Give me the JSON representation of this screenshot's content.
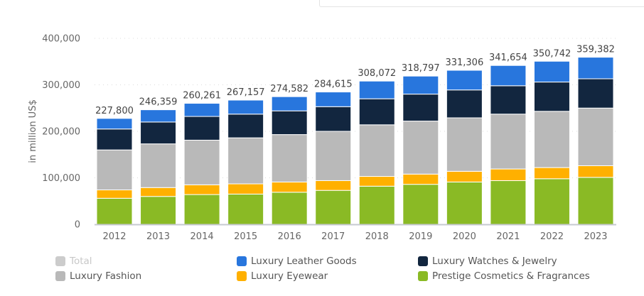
{
  "chart_data": {
    "type": "bar",
    "stacked": true,
    "ylabel": "in million US$",
    "ylim": [
      0,
      400000
    ],
    "yticks": [
      0,
      100000,
      200000,
      300000,
      400000
    ],
    "ytick_labels": [
      "0",
      "100,000",
      "200,000",
      "300,000",
      "400,000"
    ],
    "grid": true,
    "legend_placement": "bottom",
    "categories": [
      "2012",
      "2013",
      "2014",
      "2015",
      "2016",
      "2017",
      "2018",
      "2019",
      "2020",
      "2021",
      "2022",
      "2023"
    ],
    "totals": [
      227800,
      246359,
      260261,
      267157,
      274582,
      284615,
      308072,
      318797,
      331306,
      341654,
      350742,
      359382
    ],
    "total_labels": [
      "227,800",
      "246,359",
      "260,261",
      "267,157",
      "274,582",
      "284,615",
      "308,072",
      "318,797",
      "331,306",
      "341,654",
      "350,742",
      "359,382"
    ],
    "series": [
      {
        "name": "Prestige Cosmetics & Fragrances",
        "color": "#8aba25",
        "values": [
          56000,
          60000,
          64000,
          65000,
          69000,
          73000,
          82000,
          86000,
          91000,
          94000,
          98000,
          101000
        ]
      },
      {
        "name": "Luxury Eyewear",
        "color": "#ffb000",
        "values": [
          18000,
          19000,
          21000,
          22000,
          22000,
          21000,
          21000,
          22000,
          23000,
          25000,
          24000,
          25000
        ]
      },
      {
        "name": "Luxury Fashion",
        "color": "#b9b9b9",
        "values": [
          86000,
          94000,
          96000,
          99000,
          102000,
          106000,
          111000,
          114000,
          115000,
          118000,
          121000,
          124000
        ]
      },
      {
        "name": "Luxury Watches & Jewelry",
        "color": "#12263f",
        "values": [
          45000,
          47000,
          51000,
          51000,
          51000,
          53000,
          56000,
          58000,
          60000,
          61000,
          63000,
          63000
        ]
      },
      {
        "name": "Luxury Leather Goods",
        "color": "#2876dd",
        "values": [
          22800,
          26359,
          28261,
          30157,
          30582,
          31615,
          38072,
          38797,
          42306,
          43654,
          44742,
          46382
        ]
      }
    ],
    "legend": [
      {
        "name": "Total",
        "color": "#cccccc",
        "disabled": true
      },
      {
        "name": "Luxury Leather Goods",
        "color": "#2876dd"
      },
      {
        "name": "Luxury Watches & Jewelry",
        "color": "#12263f"
      },
      {
        "name": "Luxury Fashion",
        "color": "#b9b9b9"
      },
      {
        "name": "Luxury Eyewear",
        "color": "#ffb000"
      },
      {
        "name": "Prestige Cosmetics & Fragrances",
        "color": "#8aba25"
      }
    ]
  }
}
